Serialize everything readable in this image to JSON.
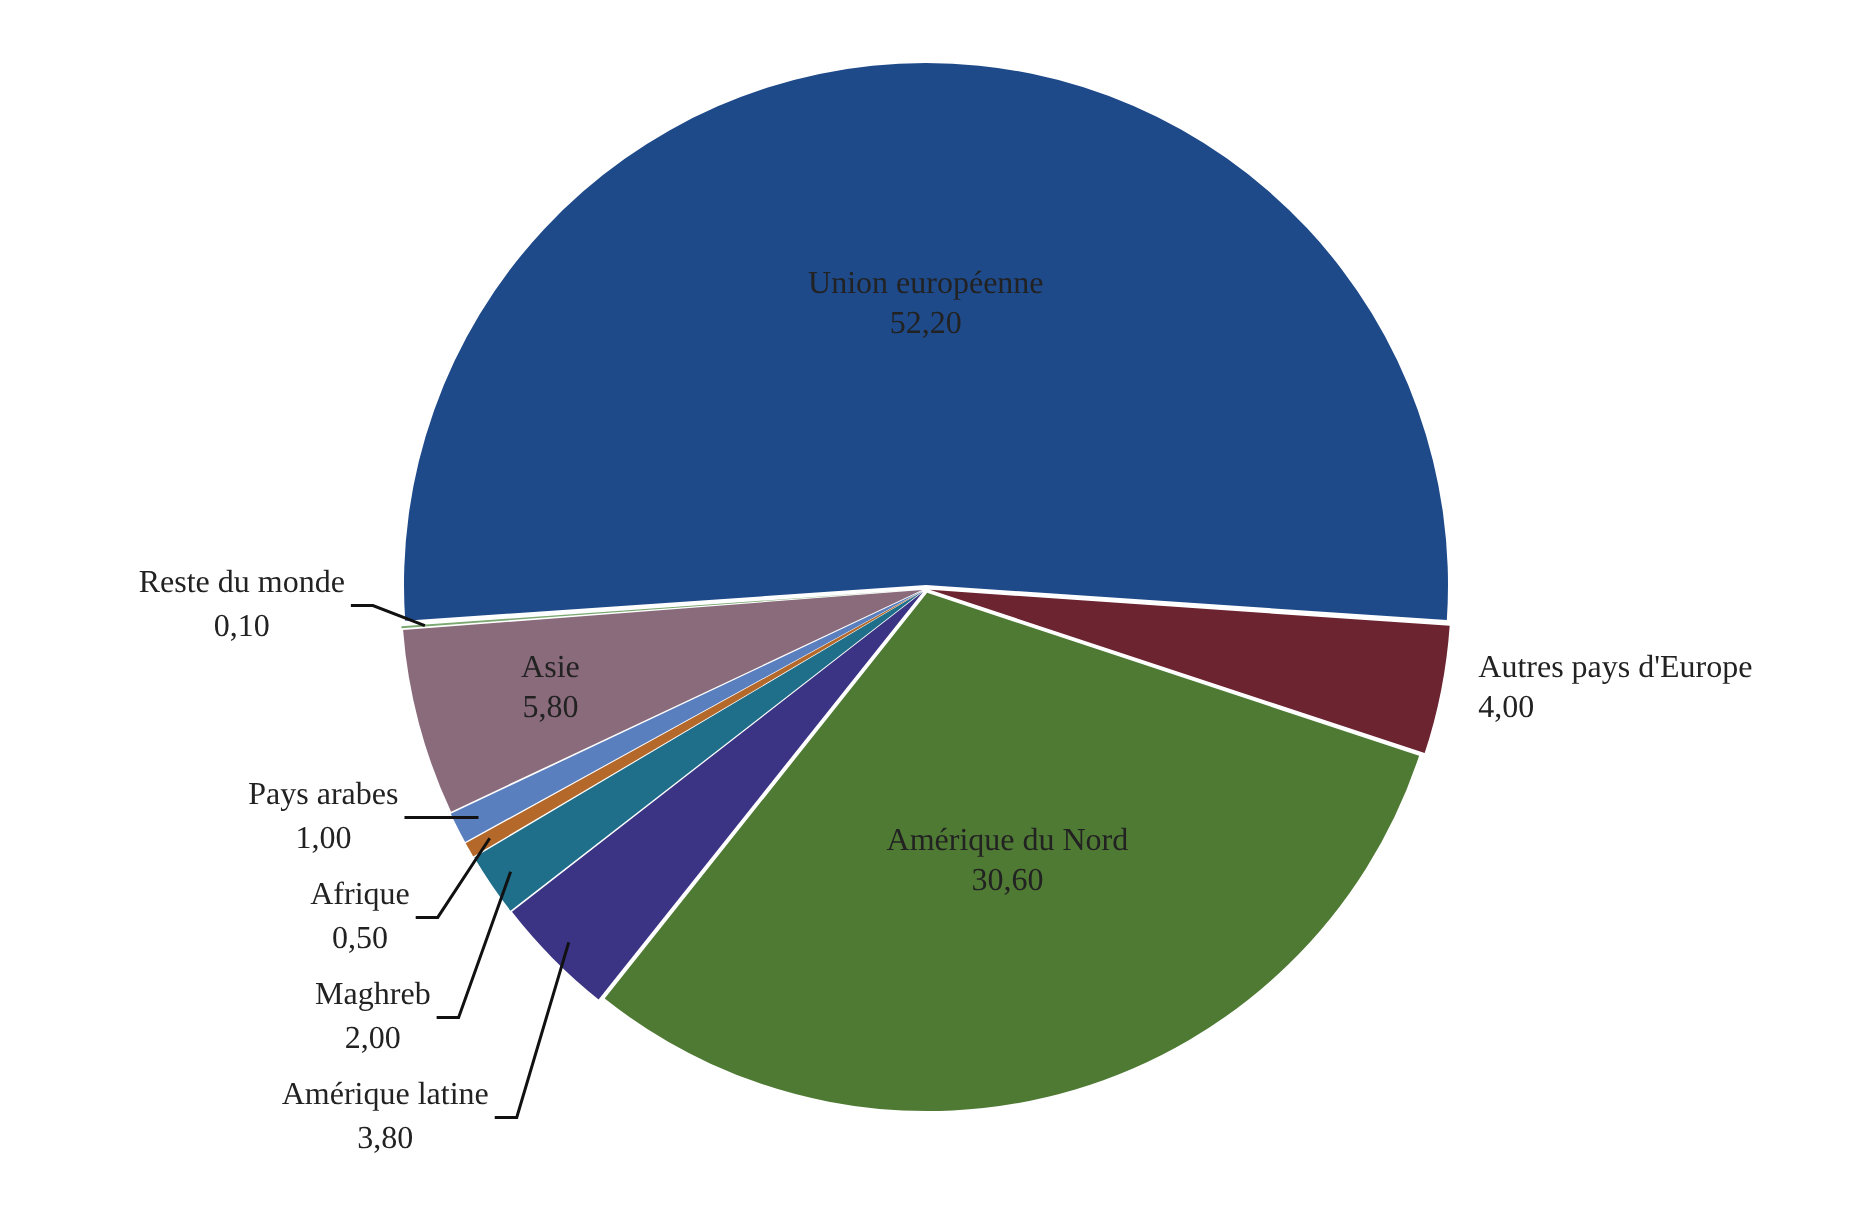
{
  "chart_data": {
    "type": "pie",
    "categories": [
      "Union européenne",
      "Autres pays d'Europe",
      "Amérique du Nord",
      "Amérique latine",
      "Maghreb",
      "Afrique",
      "Pays arabes",
      "Asie",
      "Reste du monde"
    ],
    "values": [
      52.2,
      4.0,
      30.6,
      3.8,
      2.0,
      0.5,
      1.0,
      5.8,
      0.1
    ],
    "value_labels": [
      "52,20",
      "4,00",
      "30,60",
      "3,80",
      "2,00",
      "0,50",
      "1,00",
      "5,80",
      "0,10"
    ],
    "colors": [
      "#1f4a8a",
      "#6b2430",
      "#4f7a34",
      "#3b3484",
      "#1f6e8a",
      "#b4692a",
      "#5a7fbf",
      "#8a6b7c",
      "#7aa870"
    ],
    "legend": false
  }
}
